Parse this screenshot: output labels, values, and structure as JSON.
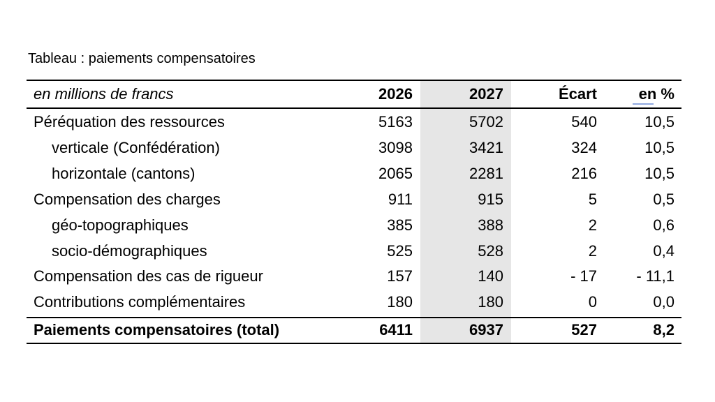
{
  "caption": "Tableau : paiements compensatoires",
  "table": {
    "header": [
      "en millions de francs",
      "2026",
      "2027",
      "Écart",
      "en %"
    ],
    "rows": [
      [
        "Péréquation des ressources",
        "5163",
        "5702",
        "540",
        "10,5"
      ],
      [
        "verticale (Confédération)",
        "3098",
        "3421",
        "324",
        "10,5"
      ],
      [
        "horizontale (cantons)",
        "2065",
        "2281",
        "216",
        "10,5"
      ],
      [
        "Compensation des charges",
        "911",
        "915",
        "5",
        "0,5"
      ],
      [
        "géo-topographiques",
        "385",
        "388",
        "2",
        "0,6"
      ],
      [
        "socio-démographiques",
        "525",
        "528",
        "2",
        "0,4"
      ],
      [
        "Compensation des cas de rigueur",
        "157",
        "140",
        "- 17",
        "- 11,1"
      ],
      [
        "Contributions complémentaires",
        "180",
        "180",
        "0",
        "0,0"
      ]
    ],
    "total": [
      "Paiements compensatoires (total)",
      "6411",
      "6937",
      "527",
      "8,2"
    ]
  }
}
